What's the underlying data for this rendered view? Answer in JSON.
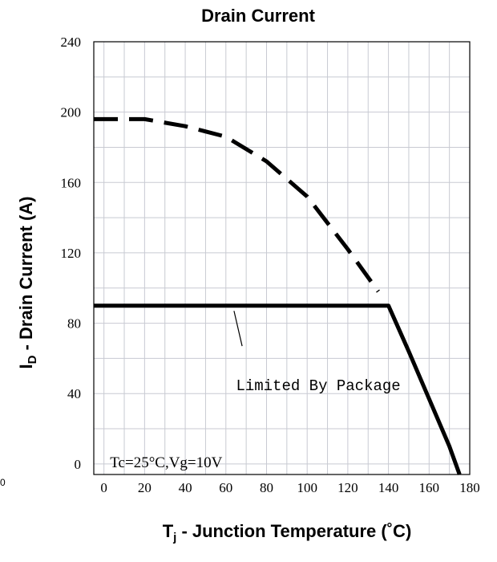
{
  "chart_data": {
    "type": "line",
    "title": "Drain Current",
    "xlabel": {
      "prefix": "T",
      "subscript": "j",
      "suffix": " - Junction Temperature (˚C)"
    },
    "ylabel": {
      "prefix": "I",
      "subscript": "D",
      "suffix": " - Drain Current (A)"
    },
    "xlim": [
      -5,
      180
    ],
    "ylim": [
      -6,
      240
    ],
    "x_ticks": [
      0,
      20,
      40,
      60,
      80,
      100,
      120,
      140,
      160,
      180
    ],
    "y_ticks": [
      0,
      40,
      80,
      120,
      160,
      200,
      240
    ],
    "grid": true,
    "series": [
      {
        "style": "dashed",
        "x": [
          -5,
          0,
          20,
          40,
          60,
          80,
          100,
          120,
          135
        ],
        "y": [
          196,
          196,
          196,
          192,
          186,
          172,
          152,
          122,
          98
        ]
      },
      {
        "style": "solid",
        "x": [
          -5,
          20,
          40,
          60,
          80,
          100,
          120,
          140,
          150,
          160,
          170,
          175
        ],
        "y": [
          90,
          90,
          90,
          90,
          90,
          90,
          90,
          90,
          64,
          37,
          10,
          -6
        ]
      }
    ],
    "annotations": [
      {
        "text": "Limited By Package",
        "x": 65,
        "y": 42,
        "pointer": {
          "x1": 64,
          "y1": 87,
          "x2": 68,
          "y2": 67
        }
      },
      {
        "text": "Tc=25°C,Vg=10V",
        "x": 3,
        "y": -2
      }
    ],
    "stray_label": "0"
  }
}
